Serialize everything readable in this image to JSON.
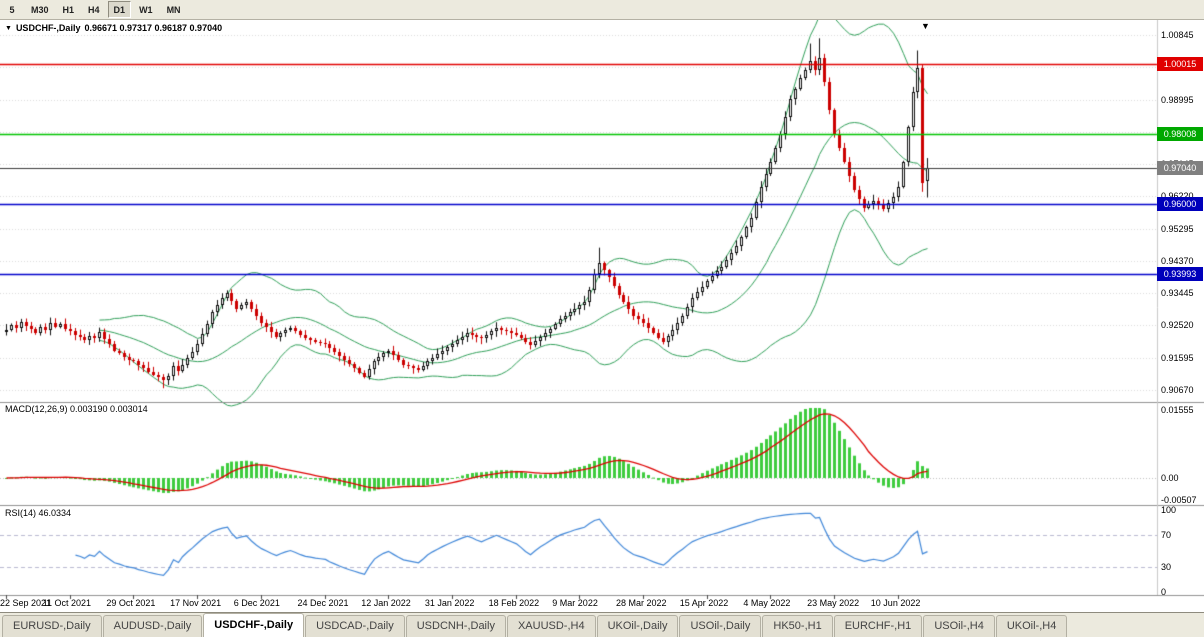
{
  "toolbar": {
    "timeframes": [
      {
        "label": "5",
        "partial": true
      },
      {
        "label": "M30"
      },
      {
        "label": "H1"
      },
      {
        "label": "H4"
      },
      {
        "label": "D1",
        "active": true
      },
      {
        "label": "W1"
      },
      {
        "label": "MN"
      }
    ]
  },
  "chart": {
    "symbol_label": "USDCHF-,Daily",
    "ohlc_readout": "0.96671 0.97317 0.96187 0.97040",
    "shift_marker": "▼",
    "levels": [
      {
        "price": 1.00015,
        "label": "1.00015",
        "line": "#e00000",
        "badge": "#e00000",
        "thickness": 1.4
      },
      {
        "price": 0.98008,
        "label": "0.98008",
        "line": "#00c400",
        "badge": "#00a800",
        "thickness": 1.4
      },
      {
        "price": 0.9704,
        "label": "0.97040",
        "line": "#3a3a3a",
        "badge": "#808080",
        "thickness": 1.1,
        "is_current_price": true
      },
      {
        "price": 0.96,
        "label": "0.96000",
        "line": "#0000cc",
        "badge": "#0000bb",
        "thickness": 1.4
      },
      {
        "price": 0.93993,
        "label": "0.93993",
        "line": "#0000cc",
        "badge": "#0000bb",
        "thickness": 1.4
      }
    ]
  },
  "indicator_labels": {
    "macd": "MACD(12,26,9) 0.003190 0.003014",
    "rsi": "RSI(14) 46.0334"
  },
  "chart_data": {
    "type": "candlestick",
    "symbol": "USDCHF-",
    "timeframe": "Daily",
    "last_bar": {
      "open": 0.96671,
      "high": 0.97317,
      "low": 0.96187,
      "close": 0.9704
    },
    "closes": [
      0.924,
      0.9253,
      0.9246,
      0.9262,
      0.925,
      0.9241,
      0.923,
      0.9247,
      0.9238,
      0.9258,
      0.9249,
      0.9255,
      0.9242,
      0.9235,
      0.9224,
      0.9218,
      0.921,
      0.9221,
      0.9215,
      0.9232,
      0.9214,
      0.9198,
      0.918,
      0.9172,
      0.9161,
      0.9154,
      0.915,
      0.9138,
      0.9131,
      0.912,
      0.9111,
      0.9103,
      0.9095,
      0.9108,
      0.9135,
      0.9121,
      0.914,
      0.9158,
      0.9176,
      0.92,
      0.9228,
      0.9256,
      0.929,
      0.9312,
      0.933,
      0.9345,
      0.9322,
      0.93,
      0.9312,
      0.932,
      0.9298,
      0.9278,
      0.926,
      0.9247,
      0.9232,
      0.922,
      0.9229,
      0.9238,
      0.9245,
      0.9235,
      0.9224,
      0.9215,
      0.9211,
      0.9206,
      0.9203,
      0.92,
      0.9188,
      0.9177,
      0.9165,
      0.9153,
      0.9141,
      0.913,
      0.9117,
      0.9105,
      0.9128,
      0.915,
      0.9161,
      0.9172,
      0.918,
      0.9167,
      0.9153,
      0.914,
      0.9135,
      0.913,
      0.9125,
      0.9137,
      0.9149,
      0.916,
      0.917,
      0.918,
      0.919,
      0.92,
      0.921,
      0.922,
      0.923,
      0.9225,
      0.922,
      0.9215,
      0.9225,
      0.9235,
      0.9245,
      0.924,
      0.9235,
      0.923,
      0.9225,
      0.9215,
      0.9205,
      0.9195,
      0.9207,
      0.9219,
      0.923,
      0.9243,
      0.9257,
      0.927,
      0.928,
      0.929,
      0.93,
      0.931,
      0.932,
      0.9355,
      0.94,
      0.943,
      0.941,
      0.939,
      0.9365,
      0.934,
      0.932,
      0.93,
      0.928,
      0.927,
      0.926,
      0.9245,
      0.923,
      0.9217,
      0.9205,
      0.9222,
      0.924,
      0.926,
      0.928,
      0.9305,
      0.933,
      0.9347,
      0.9363,
      0.938,
      0.9393,
      0.9407,
      0.942,
      0.944,
      0.946,
      0.948,
      0.9506,
      0.9533,
      0.956,
      0.9605,
      0.965,
      0.9685,
      0.972,
      0.976,
      0.98,
      0.985,
      0.99,
      0.993,
      0.996,
      0.9985,
      1.001,
      0.9985,
      1.002,
      0.995,
      0.987,
      0.98,
      0.976,
      0.972,
      0.968,
      0.964,
      0.9615,
      0.959,
      0.96,
      0.961,
      0.9597,
      0.9585,
      0.9602,
      0.962,
      0.965,
      0.972,
      0.982,
      0.992,
      0.999,
      0.966,
      0.9704
    ],
    "wick_overrides": {
      "32": {
        "l": 0.9072
      },
      "121": {
        "h": 0.9475
      },
      "164": {
        "h": 1.006
      },
      "166": {
        "h": 1.0075
      },
      "186": {
        "h": 1.004
      },
      "187": {
        "l": 0.9635
      }
    },
    "date_labels": [
      "22 Sep 2021",
      "11 Oct 2021",
      "29 Oct 2021",
      "17 Nov 2021",
      "6 Dec 2021",
      "24 Dec 2021",
      "12 Jan 2022",
      "31 Jan 2022",
      "18 Feb 2022",
      "9 Mar 2022",
      "28 Mar 2022",
      "15 Apr 2022",
      "4 May 2022",
      "23 May 2022",
      "10 Jun 2022"
    ],
    "bars_per_label": 13,
    "price_axis": {
      "labels": [
        "1.00845",
        "0.99920",
        "0.98995",
        "0.98070",
        "0.97145",
        "0.96220",
        "0.95295",
        "0.94370",
        "0.93445",
        "0.92520",
        "0.91595",
        "0.90670"
      ],
      "max": 1.00845,
      "min": 0.9067
    },
    "indicators": {
      "bollinger": {
        "period": 20,
        "deviation": 2
      },
      "macd": {
        "fast": 12,
        "slow": 26,
        "signal": 9,
        "current": "0.003190",
        "current_signal": "0.003014",
        "axis_labels": [
          "0.01555",
          "0.00",
          "-0.00507"
        ]
      },
      "rsi": {
        "period": 14,
        "current": "46.0334",
        "axis_labels": [
          "100",
          "70",
          "30",
          "0"
        ],
        "levels": [
          70,
          30
        ]
      }
    }
  },
  "tabs": [
    {
      "label": "EURUSD-,Daily"
    },
    {
      "label": "AUDUSD-,Daily"
    },
    {
      "label": "USDCHF-,Daily",
      "active": true
    },
    {
      "label": "USDCAD-,Daily"
    },
    {
      "label": "USDCNH-,Daily"
    },
    {
      "label": "XAUUSD-,H4"
    },
    {
      "label": "UKOil-,Daily"
    },
    {
      "label": "USOil-,Daily"
    },
    {
      "label": "HK50-,H1"
    },
    {
      "label": "EURCHF-,H1"
    },
    {
      "label": "USOil-,H4"
    },
    {
      "label": "UKOil-,H4"
    }
  ],
  "colors": {
    "up_candle": "#ffffff",
    "up_border": "#101010",
    "down_candle": "#cc0000",
    "bollinger": "#2e9e57",
    "macd_hist": "#3ecc3e",
    "macd_signal": "#dd0000",
    "rsi_line": "#3f86d8",
    "grid": "#d9d9d9"
  }
}
